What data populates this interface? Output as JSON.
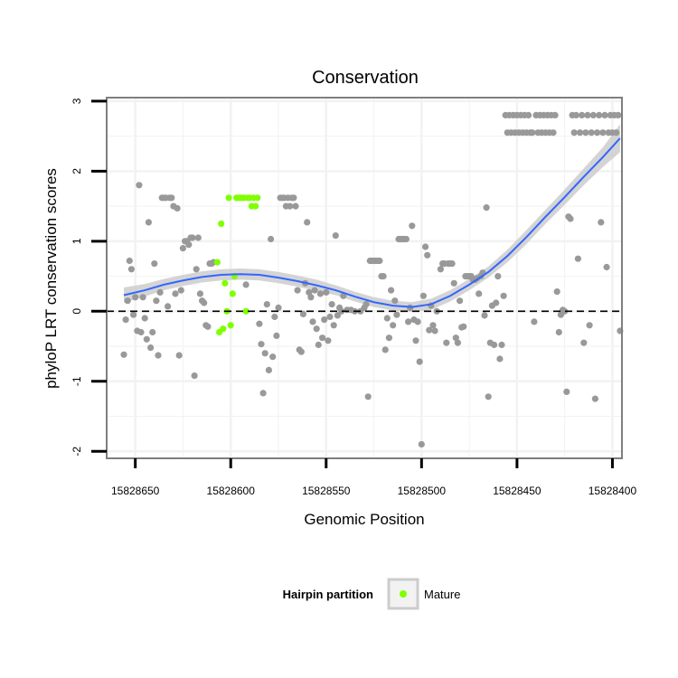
{
  "chart_data": {
    "type": "scatter",
    "title": "Conservation",
    "xlabel": "Genomic Position",
    "ylabel": "phyloP LRT conservation scores",
    "xlim": [
      15828665,
      15828395
    ],
    "ylim": [
      -2.1,
      3.05
    ],
    "x_ticks": [
      15828650,
      15828600,
      15828550,
      15828500,
      15828450,
      15828400
    ],
    "x_tick_labels": [
      "15828650",
      "15828600",
      "15828550",
      "15828500",
      "15828450",
      "15828400"
    ],
    "y_ticks": [
      -2,
      -1,
      0,
      1,
      2,
      3
    ],
    "y_tick_labels": [
      "-2",
      "-1",
      "0",
      "1",
      "2",
      "3"
    ],
    "reference_line": {
      "y": 0,
      "style": "dashed",
      "color": "#000000"
    },
    "grid": true,
    "colors": {
      "other": "#999999",
      "mature": "#7fff00",
      "smooth_line": "#3366ff",
      "ribbon": "#cccccc",
      "panel_border": "#7f7f7f",
      "grid": "#f2f2f2"
    },
    "legend": {
      "title": "Hairpin partition",
      "position": "bottom",
      "entries": [
        {
          "label": "Mature",
          "color": "#7fff00"
        }
      ]
    },
    "series": [
      {
        "name": "Other",
        "color": "#999999",
        "points": [
          [
            15828656,
            -0.62
          ],
          [
            15828655,
            -0.12
          ],
          [
            15828654,
            0.15
          ],
          [
            15828653,
            0.72
          ],
          [
            15828652,
            0.6
          ],
          [
            15828651,
            -0.05
          ],
          [
            15828650,
            0.2
          ],
          [
            15828649,
            -0.28
          ],
          [
            15828648,
            1.8
          ],
          [
            15828647,
            -0.3
          ],
          [
            15828646,
            0.2
          ],
          [
            15828645,
            -0.1
          ],
          [
            15828644,
            -0.4
          ],
          [
            15828643,
            1.27
          ],
          [
            15828642,
            -0.52
          ],
          [
            15828641,
            -0.3
          ],
          [
            15828640,
            0.68
          ],
          [
            15828639,
            0.15
          ],
          [
            15828638,
            -0.63
          ],
          [
            15828637,
            0.27
          ],
          [
            15828636,
            1.62
          ],
          [
            15828635,
            1.62
          ],
          [
            15828634,
            1.62
          ],
          [
            15828633,
            0.07
          ],
          [
            15828632,
            1.62
          ],
          [
            15828631,
            1.62
          ],
          [
            15828630,
            1.5
          ],
          [
            15828629,
            0.25
          ],
          [
            15828628,
            1.47
          ],
          [
            15828627,
            -0.63
          ],
          [
            15828626,
            0.3
          ],
          [
            15828625,
            0.9
          ],
          [
            15828624,
            1.0
          ],
          [
            15828623,
            1.0
          ],
          [
            15828622,
            0.95
          ],
          [
            15828621,
            1.05
          ],
          [
            15828620,
            1.05
          ],
          [
            15828619,
            -0.92
          ],
          [
            15828618,
            0.6
          ],
          [
            15828617,
            1.05
          ],
          [
            15828616,
            0.25
          ],
          [
            15828615,
            0.15
          ],
          [
            15828614,
            0.12
          ],
          [
            15828613,
            -0.2
          ],
          [
            15828612,
            -0.22
          ],
          [
            15828611,
            0.68
          ],
          [
            15828610,
            0.68
          ],
          [
            15828609,
            0.7
          ],
          [
            15828592,
            0.38
          ],
          [
            15828585,
            -0.18
          ],
          [
            15828584,
            -0.47
          ],
          [
            15828583,
            -1.17
          ],
          [
            15828582,
            -0.6
          ],
          [
            15828581,
            0.1
          ],
          [
            15828580,
            -0.84
          ],
          [
            15828579,
            1.03
          ],
          [
            15828578,
            -0.65
          ],
          [
            15828577,
            -0.08
          ],
          [
            15828576,
            -0.35
          ],
          [
            15828575,
            0.05
          ],
          [
            15828574,
            1.62
          ],
          [
            15828573,
            1.62
          ],
          [
            15828572,
            1.62
          ],
          [
            15828571,
            1.5
          ],
          [
            15828570,
            1.62
          ],
          [
            15828569,
            1.5
          ],
          [
            15828568,
            1.62
          ],
          [
            15828567,
            1.62
          ],
          [
            15828566,
            1.5
          ],
          [
            15828565,
            0.3
          ],
          [
            15828564,
            -0.55
          ],
          [
            15828563,
            -0.58
          ],
          [
            15828562,
            -0.04
          ],
          [
            15828561,
            0.4
          ],
          [
            15828560,
            1.27
          ],
          [
            15828559,
            0.27
          ],
          [
            15828558,
            0.2
          ],
          [
            15828557,
            -0.15
          ],
          [
            15828556,
            0.3
          ],
          [
            15828555,
            -0.25
          ],
          [
            15828554,
            -0.48
          ],
          [
            15828553,
            0.25
          ],
          [
            15828552,
            -0.38
          ],
          [
            15828551,
            -0.12
          ],
          [
            15828550,
            0.27
          ],
          [
            15828549,
            -0.42
          ],
          [
            15828548,
            -0.08
          ],
          [
            15828547,
            0.1
          ],
          [
            15828546,
            -0.2
          ],
          [
            15828545,
            1.08
          ],
          [
            15828544,
            -0.06
          ],
          [
            15828543,
            0.05
          ],
          [
            15828542,
            0.0
          ],
          [
            15828541,
            0.22
          ],
          [
            15828539,
            0.02
          ],
          [
            15828537,
            0.02
          ],
          [
            15828535,
            0.0
          ],
          [
            15828532,
            0.0
          ],
          [
            15828530,
            0.05
          ],
          [
            15828529,
            0.1
          ],
          [
            15828528,
            -1.22
          ],
          [
            15828527,
            0.72
          ],
          [
            15828526,
            0.72
          ],
          [
            15828525,
            0.72
          ],
          [
            15828524,
            0.72
          ],
          [
            15828523,
            0.72
          ],
          [
            15828522,
            0.72
          ],
          [
            15828521,
            0.5
          ],
          [
            15828520,
            0.5
          ],
          [
            15828519,
            -0.55
          ],
          [
            15828518,
            -0.1
          ],
          [
            15828517,
            -0.38
          ],
          [
            15828516,
            0.3
          ],
          [
            15828515,
            -0.2
          ],
          [
            15828514,
            0.15
          ],
          [
            15828513,
            -0.05
          ],
          [
            15828512,
            1.03
          ],
          [
            15828511,
            1.03
          ],
          [
            15828510,
            1.03
          ],
          [
            15828509,
            1.03
          ],
          [
            15828508,
            1.03
          ],
          [
            15828507,
            -0.15
          ],
          [
            15828506,
            0.05
          ],
          [
            15828505,
            1.22
          ],
          [
            15828504,
            -0.12
          ],
          [
            15828503,
            -0.42
          ],
          [
            15828502,
            -0.15
          ],
          [
            15828501,
            -0.72
          ],
          [
            15828500,
            -1.9
          ],
          [
            15828499,
            0.22
          ],
          [
            15828498,
            0.92
          ],
          [
            15828497,
            0.8
          ],
          [
            15828496,
            -0.27
          ],
          [
            15828495,
            0.08
          ],
          [
            15828494,
            -0.2
          ],
          [
            15828493,
            -0.28
          ],
          [
            15828492,
            0.0
          ],
          [
            15828490,
            0.6
          ],
          [
            15828489,
            0.68
          ],
          [
            15828488,
            0.68
          ],
          [
            15828487,
            -0.45
          ],
          [
            15828486,
            0.68
          ],
          [
            15828485,
            0.68
          ],
          [
            15828484,
            0.68
          ],
          [
            15828483,
            0.4
          ],
          [
            15828482,
            -0.38
          ],
          [
            15828481,
            -0.45
          ],
          [
            15828480,
            0.15
          ],
          [
            15828479,
            -0.23
          ],
          [
            15828478,
            -0.22
          ],
          [
            15828477,
            0.5
          ],
          [
            15828476,
            0.5
          ],
          [
            15828475,
            0.5
          ],
          [
            15828474,
            0.5
          ],
          [
            15828473,
            0.45
          ],
          [
            15828472,
            0.45
          ],
          [
            15828471,
            0.47
          ],
          [
            15828470,
            0.25
          ],
          [
            15828469,
            0.5
          ],
          [
            15828468,
            0.55
          ],
          [
            15828467,
            -0.06
          ],
          [
            15828466,
            1.48
          ],
          [
            15828465,
            -1.22
          ],
          [
            15828464,
            -0.45
          ],
          [
            15828463,
            0.08
          ],
          [
            15828462,
            -0.48
          ],
          [
            15828461,
            0.12
          ],
          [
            15828460,
            0.5
          ],
          [
            15828459,
            -0.68
          ],
          [
            15828458,
            -0.48
          ],
          [
            15828457,
            0.22
          ],
          [
            15828456,
            2.8
          ],
          [
            15828455,
            2.55
          ],
          [
            15828454,
            2.8
          ],
          [
            15828453,
            2.55
          ],
          [
            15828452,
            2.8
          ],
          [
            15828451,
            2.55
          ],
          [
            15828450,
            2.8
          ],
          [
            15828449,
            2.55
          ],
          [
            15828448,
            2.8
          ],
          [
            15828447,
            2.55
          ],
          [
            15828446,
            2.8
          ],
          [
            15828445,
            2.55
          ],
          [
            15828444,
            2.8
          ],
          [
            15828443,
            2.55
          ],
          [
            15828442,
            2.55
          ],
          [
            15828441,
            -0.15
          ],
          [
            15828440,
            2.8
          ],
          [
            15828439,
            2.55
          ],
          [
            15828438,
            2.8
          ],
          [
            15828437,
            2.55
          ],
          [
            15828436,
            2.8
          ],
          [
            15828435,
            2.55
          ],
          [
            15828434,
            2.8
          ],
          [
            15828433,
            2.55
          ],
          [
            15828432,
            2.8
          ],
          [
            15828431,
            2.55
          ],
          [
            15828430,
            2.8
          ],
          [
            15828429,
            0.28
          ],
          [
            15828428,
            -0.3
          ],
          [
            15828427,
            -0.05
          ],
          [
            15828426,
            0.02
          ],
          [
            15828425,
            0.0
          ],
          [
            15828424,
            -1.15
          ],
          [
            15828423,
            1.35
          ],
          [
            15828422,
            1.32
          ],
          [
            15828421,
            2.8
          ],
          [
            15828420,
            2.55
          ],
          [
            15828419,
            2.8
          ],
          [
            15828418,
            0.75
          ],
          [
            15828417,
            2.55
          ],
          [
            15828416,
            2.8
          ],
          [
            15828415,
            -0.45
          ],
          [
            15828414,
            2.55
          ],
          [
            15828413,
            2.8
          ],
          [
            15828412,
            -0.2
          ],
          [
            15828411,
            2.55
          ],
          [
            15828410,
            2.8
          ],
          [
            15828409,
            -1.25
          ],
          [
            15828408,
            2.55
          ],
          [
            15828407,
            2.8
          ],
          [
            15828406,
            1.27
          ],
          [
            15828405,
            2.55
          ],
          [
            15828404,
            2.8
          ],
          [
            15828403,
            0.63
          ],
          [
            15828402,
            2.55
          ],
          [
            15828401,
            2.8
          ],
          [
            15828400,
            2.55
          ],
          [
            15828399,
            2.8
          ],
          [
            15828398,
            2.55
          ],
          [
            15828397,
            2.8
          ],
          [
            15828396,
            -0.28
          ]
        ]
      },
      {
        "name": "Mature",
        "color": "#7fff00",
        "points": [
          [
            15828607,
            0.7
          ],
          [
            15828606,
            -0.3
          ],
          [
            15828605,
            1.25
          ],
          [
            15828604,
            -0.25
          ],
          [
            15828603,
            0.4
          ],
          [
            15828602,
            0.0
          ],
          [
            15828601,
            1.62
          ],
          [
            15828600,
            -0.2
          ],
          [
            15828599,
            0.25
          ],
          [
            15828598,
            0.5
          ],
          [
            15828597,
            1.62
          ],
          [
            15828596,
            1.62
          ],
          [
            15828595,
            1.62
          ],
          [
            15828594,
            1.62
          ],
          [
            15828593,
            1.62
          ],
          [
            15828592,
            0.0
          ],
          [
            15828591,
            1.62
          ],
          [
            15828590,
            1.62
          ],
          [
            15828589,
            1.5
          ],
          [
            15828588,
            1.62
          ],
          [
            15828587,
            1.5
          ],
          [
            15828586,
            1.62
          ]
        ]
      }
    ],
    "smooth": {
      "method": "loess",
      "x": [
        15828656,
        15828645,
        15828635,
        15828625,
        15828615,
        15828605,
        15828595,
        15828585,
        15828575,
        15828565,
        15828555,
        15828545,
        15828535,
        15828525,
        15828515,
        15828505,
        15828495,
        15828485,
        15828475,
        15828465,
        15828455,
        15828445,
        15828435,
        15828425,
        15828415,
        15828405,
        15828396
      ],
      "y": [
        0.23,
        0.3,
        0.38,
        0.44,
        0.49,
        0.52,
        0.53,
        0.52,
        0.48,
        0.43,
        0.37,
        0.3,
        0.21,
        0.13,
        0.08,
        0.06,
        0.1,
        0.22,
        0.38,
        0.56,
        0.79,
        1.06,
        1.35,
        1.63,
        1.92,
        2.2,
        2.47
      ],
      "se": [
        0.11,
        0.09,
        0.08,
        0.08,
        0.08,
        0.08,
        0.08,
        0.08,
        0.08,
        0.08,
        0.08,
        0.07,
        0.07,
        0.07,
        0.07,
        0.07,
        0.08,
        0.08,
        0.08,
        0.08,
        0.09,
        0.1,
        0.1,
        0.11,
        0.12,
        0.14,
        0.2
      ]
    }
  }
}
